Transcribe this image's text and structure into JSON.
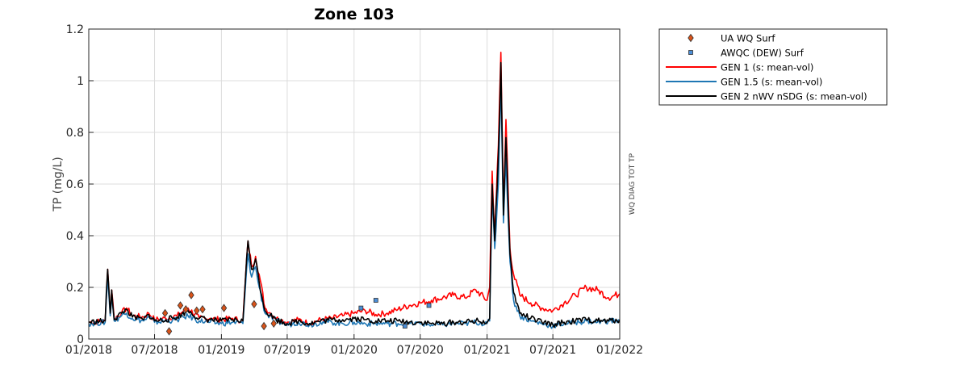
{
  "chart_data": {
    "type": "line",
    "title": "Zone 103",
    "ylabel": "TP (mg/L)",
    "right_label": "WQ DIAG TOT TP",
    "xlim": [
      "2018-01-01",
      "2022-01-01"
    ],
    "ylim": [
      0,
      1.2
    ],
    "grid": true,
    "legend_position": "outside-top-right",
    "x_ticks": [
      "01/2018",
      "07/2018",
      "01/2019",
      "07/2019",
      "01/2020",
      "07/2020",
      "01/2021",
      "07/2021",
      "01/2022"
    ],
    "y_ticks": [
      "0",
      "0.2",
      "0.4",
      "0.6",
      "0.8",
      "1",
      "1.2"
    ],
    "series": [
      {
        "name": "GEN 1 (s: mean-vol)",
        "style": "line",
        "color": "#ff0000",
        "points": [
          [
            "2018-01-01",
            0.065
          ],
          [
            "2018-02-15",
            0.07
          ],
          [
            "2018-02-22",
            0.27
          ],
          [
            "2018-03-01",
            0.1
          ],
          [
            "2018-03-05",
            0.19
          ],
          [
            "2018-03-12",
            0.08
          ],
          [
            "2018-04-01",
            0.1
          ],
          [
            "2018-04-15",
            0.12
          ],
          [
            "2018-05-01",
            0.09
          ],
          [
            "2018-06-01",
            0.085
          ],
          [
            "2018-06-15",
            0.1
          ],
          [
            "2018-07-01",
            0.075
          ],
          [
            "2018-08-01",
            0.08
          ],
          [
            "2018-09-01",
            0.09
          ],
          [
            "2018-10-01",
            0.12
          ],
          [
            "2018-11-01",
            0.08
          ],
          [
            "2018-12-01",
            0.08
          ],
          [
            "2019-01-01",
            0.075
          ],
          [
            "2019-02-01",
            0.08
          ],
          [
            "2019-03-01",
            0.07
          ],
          [
            "2019-03-15",
            0.38
          ],
          [
            "2019-03-25",
            0.28
          ],
          [
            "2019-04-05",
            0.32
          ],
          [
            "2019-04-15",
            0.25
          ],
          [
            "2019-05-01",
            0.12
          ],
          [
            "2019-06-01",
            0.08
          ],
          [
            "2019-07-01",
            0.065
          ],
          [
            "2019-08-01",
            0.075
          ],
          [
            "2019-09-01",
            0.06
          ],
          [
            "2019-10-01",
            0.075
          ],
          [
            "2019-11-01",
            0.08
          ],
          [
            "2019-12-01",
            0.09
          ],
          [
            "2020-01-01",
            0.1
          ],
          [
            "2020-02-01",
            0.11
          ],
          [
            "2020-03-01",
            0.095
          ],
          [
            "2020-04-01",
            0.1
          ],
          [
            "2020-05-01",
            0.115
          ],
          [
            "2020-06-01",
            0.13
          ],
          [
            "2020-07-01",
            0.14
          ],
          [
            "2020-08-01",
            0.15
          ],
          [
            "2020-09-01",
            0.16
          ],
          [
            "2020-10-01",
            0.17
          ],
          [
            "2020-11-01",
            0.16
          ],
          [
            "2020-12-01",
            0.19
          ],
          [
            "2021-01-01",
            0.15
          ],
          [
            "2021-01-08",
            0.2
          ],
          [
            "2021-01-15",
            0.65
          ],
          [
            "2021-01-22",
            0.4
          ],
          [
            "2021-02-01",
            0.75
          ],
          [
            "2021-02-08",
            1.11
          ],
          [
            "2021-02-15",
            0.5
          ],
          [
            "2021-02-22",
            0.85
          ],
          [
            "2021-03-05",
            0.35
          ],
          [
            "2021-03-15",
            0.25
          ],
          [
            "2021-04-01",
            0.17
          ],
          [
            "2021-05-01",
            0.14
          ],
          [
            "2021-06-01",
            0.12
          ],
          [
            "2021-07-01",
            0.11
          ],
          [
            "2021-08-01",
            0.14
          ],
          [
            "2021-09-01",
            0.17
          ],
          [
            "2021-10-01",
            0.2
          ],
          [
            "2021-11-01",
            0.19
          ],
          [
            "2021-12-01",
            0.16
          ],
          [
            "2022-01-01",
            0.175
          ]
        ]
      },
      {
        "name": "GEN 1.5 (s: mean-vol)",
        "style": "line",
        "color": "#1f77b4",
        "points": [
          [
            "2018-01-01",
            0.06
          ],
          [
            "2018-02-15",
            0.065
          ],
          [
            "2018-02-22",
            0.24
          ],
          [
            "2018-03-01",
            0.09
          ],
          [
            "2018-03-05",
            0.17
          ],
          [
            "2018-03-12",
            0.07
          ],
          [
            "2018-04-01",
            0.09
          ],
          [
            "2018-04-15",
            0.1
          ],
          [
            "2018-05-01",
            0.08
          ],
          [
            "2018-06-01",
            0.07
          ],
          [
            "2018-06-15",
            0.085
          ],
          [
            "2018-07-01",
            0.065
          ],
          [
            "2018-08-01",
            0.07
          ],
          [
            "2018-09-01",
            0.075
          ],
          [
            "2018-10-01",
            0.09
          ],
          [
            "2018-11-01",
            0.07
          ],
          [
            "2018-12-01",
            0.065
          ],
          [
            "2019-01-01",
            0.06
          ],
          [
            "2019-02-01",
            0.065
          ],
          [
            "2019-03-01",
            0.06
          ],
          [
            "2019-03-15",
            0.33
          ],
          [
            "2019-03-25",
            0.24
          ],
          [
            "2019-04-05",
            0.28
          ],
          [
            "2019-04-15",
            0.2
          ],
          [
            "2019-05-01",
            0.1
          ],
          [
            "2019-06-01",
            0.07
          ],
          [
            "2019-07-01",
            0.055
          ],
          [
            "2019-08-01",
            0.065
          ],
          [
            "2019-09-01",
            0.055
          ],
          [
            "2019-10-01",
            0.065
          ],
          [
            "2019-11-01",
            0.065
          ],
          [
            "2019-12-01",
            0.06
          ],
          [
            "2020-01-01",
            0.065
          ],
          [
            "2020-02-01",
            0.06
          ],
          [
            "2020-03-01",
            0.06
          ],
          [
            "2020-04-01",
            0.06
          ],
          [
            "2020-05-01",
            0.06
          ],
          [
            "2020-06-01",
            0.06
          ],
          [
            "2020-07-01",
            0.06
          ],
          [
            "2020-08-01",
            0.055
          ],
          [
            "2020-09-01",
            0.055
          ],
          [
            "2020-10-01",
            0.06
          ],
          [
            "2020-11-01",
            0.06
          ],
          [
            "2020-12-01",
            0.065
          ],
          [
            "2021-01-01",
            0.06
          ],
          [
            "2021-01-08",
            0.07
          ],
          [
            "2021-01-15",
            0.55
          ],
          [
            "2021-01-22",
            0.35
          ],
          [
            "2021-02-01",
            0.6
          ],
          [
            "2021-02-08",
            1.02
          ],
          [
            "2021-02-15",
            0.45
          ],
          [
            "2021-02-22",
            0.7
          ],
          [
            "2021-03-05",
            0.3
          ],
          [
            "2021-03-15",
            0.15
          ],
          [
            "2021-04-01",
            0.09
          ],
          [
            "2021-05-01",
            0.07
          ],
          [
            "2021-06-01",
            0.06
          ],
          [
            "2021-07-01",
            0.05
          ],
          [
            "2021-08-01",
            0.06
          ],
          [
            "2021-09-01",
            0.065
          ],
          [
            "2021-10-01",
            0.07
          ],
          [
            "2021-11-01",
            0.065
          ],
          [
            "2021-12-01",
            0.07
          ],
          [
            "2022-01-01",
            0.07
          ]
        ]
      },
      {
        "name": "GEN 2 nWV nSDG (s: mean-vol)",
        "style": "line",
        "color": "#000000",
        "points": [
          [
            "2018-01-01",
            0.065
          ],
          [
            "2018-02-15",
            0.07
          ],
          [
            "2018-02-22",
            0.27
          ],
          [
            "2018-03-01",
            0.1
          ],
          [
            "2018-03-05",
            0.19
          ],
          [
            "2018-03-12",
            0.075
          ],
          [
            "2018-04-01",
            0.1
          ],
          [
            "2018-04-15",
            0.115
          ],
          [
            "2018-05-01",
            0.085
          ],
          [
            "2018-06-01",
            0.075
          ],
          [
            "2018-06-15",
            0.095
          ],
          [
            "2018-07-01",
            0.07
          ],
          [
            "2018-08-01",
            0.075
          ],
          [
            "2018-09-01",
            0.085
          ],
          [
            "2018-10-01",
            0.11
          ],
          [
            "2018-11-01",
            0.08
          ],
          [
            "2018-12-01",
            0.075
          ],
          [
            "2019-01-01",
            0.07
          ],
          [
            "2019-02-01",
            0.075
          ],
          [
            "2019-03-01",
            0.07
          ],
          [
            "2019-03-15",
            0.38
          ],
          [
            "2019-03-25",
            0.27
          ],
          [
            "2019-04-05",
            0.31
          ],
          [
            "2019-04-15",
            0.22
          ],
          [
            "2019-05-01",
            0.11
          ],
          [
            "2019-06-01",
            0.075
          ],
          [
            "2019-07-01",
            0.06
          ],
          [
            "2019-08-01",
            0.07
          ],
          [
            "2019-09-01",
            0.06
          ],
          [
            "2019-10-01",
            0.07
          ],
          [
            "2019-11-01",
            0.075
          ],
          [
            "2019-12-01",
            0.075
          ],
          [
            "2020-01-01",
            0.08
          ],
          [
            "2020-02-01",
            0.075
          ],
          [
            "2020-03-01",
            0.07
          ],
          [
            "2020-04-01",
            0.07
          ],
          [
            "2020-05-01",
            0.07
          ],
          [
            "2020-06-01",
            0.065
          ],
          [
            "2020-07-01",
            0.065
          ],
          [
            "2020-08-01",
            0.06
          ],
          [
            "2020-09-01",
            0.06
          ],
          [
            "2020-10-01",
            0.065
          ],
          [
            "2020-11-01",
            0.065
          ],
          [
            "2020-12-01",
            0.07
          ],
          [
            "2021-01-01",
            0.065
          ],
          [
            "2021-01-08",
            0.08
          ],
          [
            "2021-01-15",
            0.6
          ],
          [
            "2021-01-22",
            0.38
          ],
          [
            "2021-02-01",
            0.72
          ],
          [
            "2021-02-08",
            1.07
          ],
          [
            "2021-02-15",
            0.48
          ],
          [
            "2021-02-22",
            0.78
          ],
          [
            "2021-03-05",
            0.33
          ],
          [
            "2021-03-15",
            0.18
          ],
          [
            "2021-04-01",
            0.1
          ],
          [
            "2021-05-01",
            0.08
          ],
          [
            "2021-06-01",
            0.065
          ],
          [
            "2021-07-01",
            0.055
          ],
          [
            "2021-08-01",
            0.065
          ],
          [
            "2021-09-01",
            0.07
          ],
          [
            "2021-10-01",
            0.075
          ],
          [
            "2021-11-01",
            0.07
          ],
          [
            "2021-12-01",
            0.07
          ],
          [
            "2022-01-01",
            0.075
          ]
        ]
      },
      {
        "name": "UA WQ Surf",
        "style": "marker",
        "marker": "diamond",
        "color": "#d95319",
        "points": [
          [
            "2018-07-30",
            0.1
          ],
          [
            "2018-08-10",
            0.03
          ],
          [
            "2018-09-10",
            0.13
          ],
          [
            "2018-09-25",
            0.115
          ],
          [
            "2018-10-10",
            0.17
          ],
          [
            "2018-10-25",
            0.11
          ],
          [
            "2018-11-10",
            0.115
          ],
          [
            "2019-01-08",
            0.12
          ],
          [
            "2019-04-01",
            0.135
          ],
          [
            "2019-04-28",
            0.05
          ],
          [
            "2019-05-25",
            0.06
          ]
        ]
      },
      {
        "name": "AWQC (DEW) Surf",
        "style": "marker",
        "marker": "square",
        "color": "#4c8ed6",
        "points": [
          [
            "2020-01-20",
            0.12
          ],
          [
            "2020-03-01",
            0.15
          ],
          [
            "2020-05-20",
            0.05
          ],
          [
            "2020-07-25",
            0.13
          ]
        ]
      }
    ]
  },
  "legend": {
    "items": [
      {
        "label": "UA WQ Surf",
        "kind": "diamond",
        "color": "#d95319"
      },
      {
        "label": "AWQC (DEW) Surf",
        "kind": "square",
        "color": "#4c8ed6"
      },
      {
        "label": "GEN 1 (s: mean-vol)",
        "kind": "line",
        "color": "#ff0000"
      },
      {
        "label": "GEN 1.5 (s: mean-vol)",
        "kind": "line",
        "color": "#1f77b4"
      },
      {
        "label": "GEN 2 nWV nSDG (s: mean-vol)",
        "kind": "line",
        "color": "#000000"
      }
    ]
  }
}
